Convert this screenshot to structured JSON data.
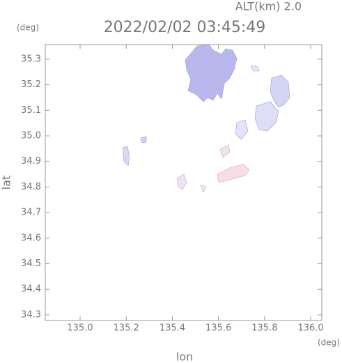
{
  "chart_data": {
    "type": "map",
    "title": "2022/02/02 03:45:49",
    "subtitle": "ALT(km) 2.0",
    "x_label": "lon",
    "y_label": "lat",
    "x_unit": "(deg)",
    "y_unit": "(deg)",
    "xlim": [
      134.849,
      136.048
    ],
    "ylim": [
      34.278,
      35.357
    ],
    "xticks": [
      {
        "value": 135,
        "label": "135.0"
      },
      135.2,
      135.4,
      135.6,
      135.8,
      {
        "value": 136,
        "label": "136.0"
      }
    ],
    "yticks": [
      34.3,
      34.4,
      34.5,
      34.6,
      34.7,
      34.8,
      34.9,
      {
        "value": 35,
        "label": "35.0"
      },
      35.1,
      35.2,
      35.3
    ]
  }
}
